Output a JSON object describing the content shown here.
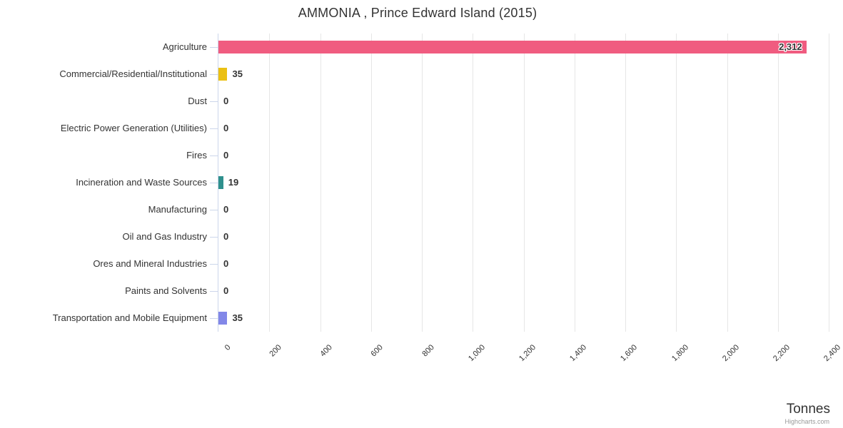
{
  "title": "AMMONIA , Prince Edward Island (2015)",
  "xaxis": {
    "title": "Tonnes",
    "tick_labels": [
      "0",
      "200",
      "400",
      "600",
      "800",
      "1,000",
      "1,200",
      "1,400",
      "1,600",
      "1,800",
      "2,000",
      "2,200",
      "2,400"
    ]
  },
  "credit": "Highcharts.com",
  "colors": {
    "grid": "#e6e6e6",
    "axis_line": "#ccd6eb",
    "text": "#333333"
  },
  "chart_data": {
    "type": "bar",
    "orientation": "horizontal",
    "title": "AMMONIA , Prince Edward Island (2015)",
    "xlabel": "Tonnes",
    "xlim": [
      0,
      2400
    ],
    "grid": true,
    "legend": false,
    "categories": [
      "Agriculture",
      "Commercial/Residential/Institutional",
      "Dust",
      "Electric Power Generation (Utilities)",
      "Fires",
      "Incineration and Waste Sources",
      "Manufacturing",
      "Oil and Gas Industry",
      "Ores and Mineral Industries",
      "Paints and Solvents",
      "Transportation and Mobile Equipment"
    ],
    "values": [
      2312,
      35,
      0,
      0,
      0,
      19,
      0,
      0,
      0,
      0,
      35
    ],
    "value_labels": [
      "2,312",
      "35",
      "0",
      "0",
      "0",
      "19",
      "0",
      "0",
      "0",
      "0",
      "35"
    ],
    "bar_colors": [
      "#f05c80",
      "#ebc013",
      null,
      null,
      null,
      "#2f908d",
      null,
      null,
      null,
      null,
      "#8287e8"
    ]
  }
}
